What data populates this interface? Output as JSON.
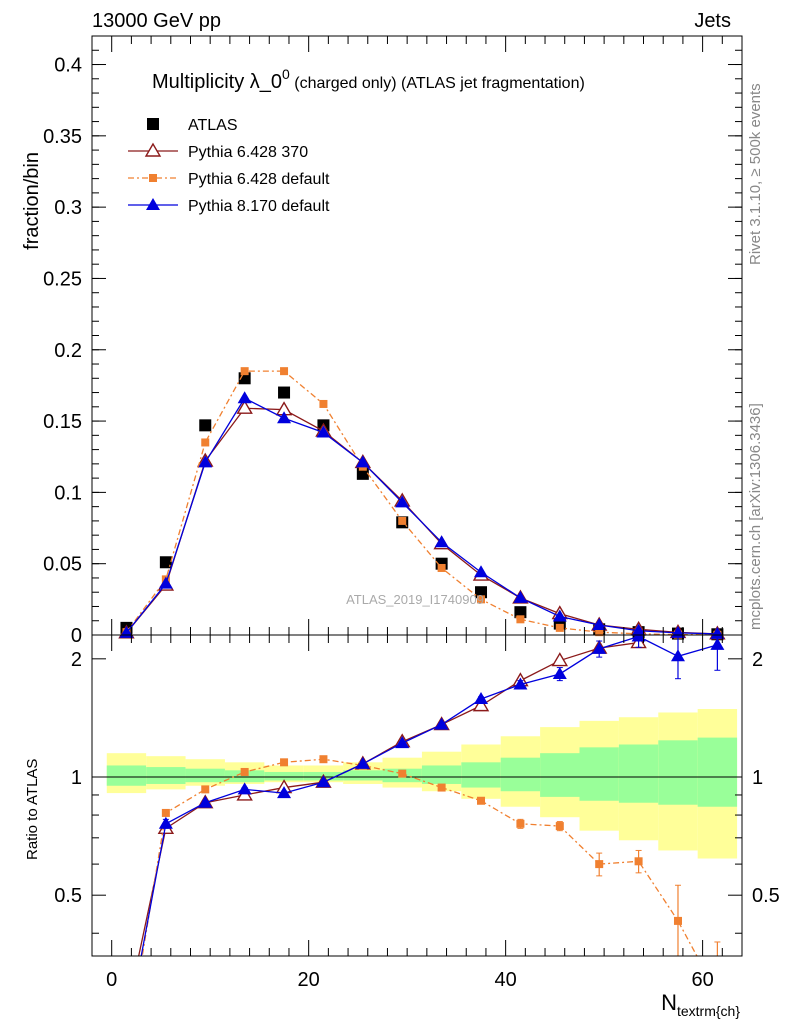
{
  "header": {
    "left_label": "13000 GeV pp",
    "right_label": "Jets"
  },
  "side_labels": {
    "rivet": "Rivet 3.1.10, ≥ 500k events",
    "mcplots": "mcplots.cern.ch [arXiv:1306.3436]"
  },
  "watermark": "ATLAS_2019_I1740909",
  "chart_data": [
    {
      "type": "line",
      "panel": "main",
      "title": "Multiplicity λ_0",
      "title_superscript": "0",
      "title_suffix": " (charged only) (ATLAS jet fragmentation)",
      "xlabel": "N",
      "xlabel_subscript": "textrm{ch}",
      "ylabel": "fraction/bin",
      "xlim": [
        -2,
        64
      ],
      "ylim": [
        0,
        0.42
      ],
      "yticks": [
        "0",
        "0.05",
        "0.1",
        "0.15",
        "0.2",
        "0.25",
        "0.3",
        "0.35",
        "0.4"
      ],
      "x": [
        1.5,
        5.5,
        9.5,
        13.5,
        17.5,
        21.5,
        25.5,
        29.5,
        33.5,
        37.5,
        41.5,
        45.5,
        49.5,
        53.5,
        57.5,
        61.5
      ],
      "series": [
        {
          "name": "ATLAS",
          "color": "#000000",
          "marker": "square",
          "values": [
            0.005,
            0.051,
            0.147,
            0.18,
            0.17,
            0.147,
            0.113,
            0.079,
            0.05,
            0.03,
            0.016,
            0.008,
            0.004,
            0.002,
            0.001,
            0.0005
          ]
        },
        {
          "name": "Pythia 6.428 370",
          "color": "#8b1a1a",
          "marker": "open-triangle",
          "values": [
            0.0015,
            0.035,
            0.122,
            0.159,
            0.158,
            0.143,
            0.121,
            0.094,
            0.064,
            0.042,
            0.026,
            0.015,
            0.007,
            0.004,
            0.0018,
            0.0008
          ]
        },
        {
          "name": "Pythia 6.428 default",
          "color": "#f08030",
          "marker": "small-square",
          "dashed": true,
          "values": [
            0.002,
            0.039,
            0.135,
            0.185,
            0.185,
            0.162,
            0.118,
            0.08,
            0.047,
            0.025,
            0.011,
            0.005,
            0.002,
            0.0008,
            0.0003,
            0.0001
          ]
        },
        {
          "name": "Pythia 8.170 default",
          "color": "#0000dd",
          "marker": "filled-triangle",
          "values": [
            0.0015,
            0.036,
            0.121,
            0.166,
            0.152,
            0.142,
            0.121,
            0.093,
            0.065,
            0.044,
            0.026,
            0.013,
            0.007,
            0.003,
            0.0015,
            0.0008
          ]
        }
      ]
    },
    {
      "type": "line",
      "panel": "ratio",
      "ylabel": "Ratio to ATLAS",
      "xlabel": "N",
      "xlabel_subscript": "textrm{ch}",
      "xlim": [
        -2,
        64
      ],
      "ylim": [
        0.35,
        2.3
      ],
      "xticks": [
        "0",
        "20",
        "40",
        "60"
      ],
      "yticks": [
        "0.5",
        "1",
        "2"
      ],
      "x": [
        1.5,
        5.5,
        9.5,
        13.5,
        17.5,
        21.5,
        25.5,
        29.5,
        33.5,
        37.5,
        41.5,
        45.5,
        49.5,
        53.5,
        57.5,
        61.5
      ],
      "bands": {
        "bin_edges": [
          -0.5,
          3.5,
          7.5,
          11.5,
          15.5,
          19.5,
          23.5,
          27.5,
          31.5,
          35.5,
          39.5,
          43.5,
          47.5,
          51.5,
          55.5,
          59.5,
          63.5
        ],
        "inner_color": "#99ff99",
        "outer_color": "#ffff99",
        "inner_lo": [
          0.95,
          0.96,
          0.97,
          0.97,
          0.98,
          0.98,
          0.98,
          0.97,
          0.96,
          0.94,
          0.92,
          0.89,
          0.87,
          0.86,
          0.85,
          0.84
        ],
        "inner_hi": [
          1.07,
          1.06,
          1.05,
          1.04,
          1.03,
          1.03,
          1.04,
          1.05,
          1.07,
          1.09,
          1.12,
          1.15,
          1.19,
          1.21,
          1.24,
          1.26
        ],
        "outer_lo": [
          0.91,
          0.93,
          0.95,
          0.96,
          0.97,
          0.97,
          0.96,
          0.94,
          0.92,
          0.88,
          0.84,
          0.79,
          0.73,
          0.69,
          0.65,
          0.62
        ],
        "outer_hi": [
          1.15,
          1.13,
          1.11,
          1.09,
          1.07,
          1.07,
          1.09,
          1.12,
          1.16,
          1.21,
          1.27,
          1.34,
          1.39,
          1.42,
          1.46,
          1.49
        ]
      },
      "series": [
        {
          "name": "Pythia 6.428 370",
          "color": "#8b1a1a",
          "marker": "open-triangle",
          "values": [
            0.25,
            0.74,
            0.86,
            0.9,
            0.94,
            0.97,
            1.08,
            1.23,
            1.36,
            1.52,
            1.76,
            1.98,
            2.13,
            2.2,
            null,
            null
          ]
        },
        {
          "name": "Pythia 6.428 default",
          "color": "#f08030",
          "marker": "small-square",
          "dashed": true,
          "values": [
            0.2,
            0.81,
            0.93,
            1.03,
            1.09,
            1.11,
            1.07,
            1.02,
            0.94,
            0.87,
            0.76,
            0.75,
            0.6,
            0.61,
            0.43,
            0.28
          ],
          "errors": [
            0.0,
            0.01,
            0.0,
            0.0,
            0.0,
            0.0,
            0.0,
            0.0,
            0.0,
            0.0,
            0.02,
            0.02,
            0.04,
            0.04,
            0.1,
            0.1
          ]
        },
        {
          "name": "Pythia 8.170 default",
          "color": "#0000dd",
          "marker": "filled-triangle",
          "values": [
            0.22,
            0.76,
            0.86,
            0.93,
            0.91,
            0.97,
            1.08,
            1.22,
            1.36,
            1.58,
            1.72,
            1.83,
            2.12,
            2.28,
            2.03,
            2.17
          ],
          "errors": [
            0.0,
            0.02,
            0.01,
            0.01,
            0.01,
            0.01,
            0.01,
            0.01,
            0.01,
            0.02,
            0.04,
            0.07,
            0.1,
            0.14,
            0.25,
            0.3
          ]
        }
      ]
    }
  ]
}
